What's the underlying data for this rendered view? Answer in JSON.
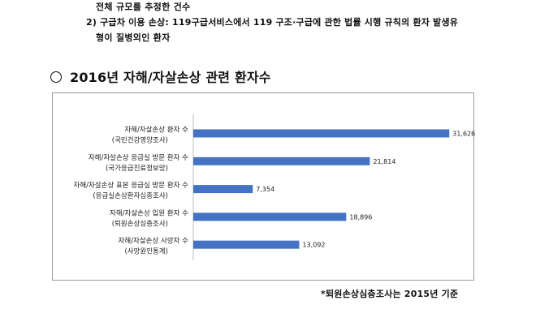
{
  "doc": {
    "line1": "전체 규모를 추정한 건수",
    "line2": "2) 구급차 이용 손상: 119구급서비스에서 119 구조·구급에 관한 법률 시행 규칙의 환자 발생유",
    "line3": "형이 질병외인 환자",
    "section_title": "2016년 자해/자살손상 관련 환자수",
    "footnote": "*퇴원손상심층조사는 2015년 기준"
  },
  "colors": {
    "bar": "#4472C4",
    "axis": "#bfbfbf",
    "border": "#9a9a9a"
  },
  "chart_data": {
    "type": "bar",
    "orientation": "horizontal",
    "categories": [
      {
        "label": "자해/자살손상 환자 수",
        "source": "(국민건강영양조사)"
      },
      {
        "label": "자해/자살손상 응급실 방문 환자 수",
        "source": "(국가응급진료정보망)"
      },
      {
        "label": "자해/자살손상 표본 응급실 방문 환자 수",
        "source": "(응급실손상환자심층조사)"
      },
      {
        "label": "자해/자살손상 입원 환자 수",
        "source": "(퇴원손상심층조사)"
      },
      {
        "label": "자해/자살손상 사망자 수",
        "source": "(사망원인통계)"
      }
    ],
    "values": [
      31626,
      21814,
      7354,
      18896,
      13092
    ],
    "value_labels": [
      "31,626",
      "21,814",
      "7,354",
      "18,896",
      "13,092"
    ],
    "xlim": [
      0,
      35000
    ],
    "grid": false,
    "legend": "none"
  }
}
